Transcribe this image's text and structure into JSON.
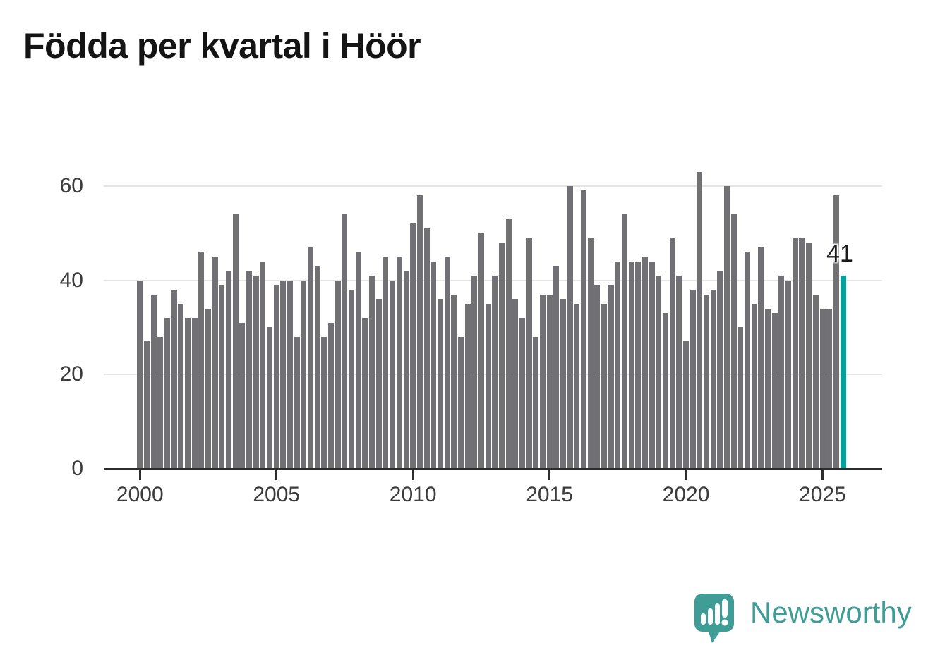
{
  "title": "Födda per kvartal i Höör",
  "value_label": "41",
  "logo": {
    "text": "Newsworthy"
  },
  "colors": {
    "bar": "#707075",
    "highlight": "#00a29c",
    "grid": "#e4e4e4",
    "axis": "#2d2d2d",
    "tick_text": "#3c3c3c",
    "title_text": "#141414",
    "logo_teal": "#3f9d96"
  },
  "chart_data": {
    "type": "bar",
    "title": "Födda per kvartal i Höör",
    "x_start": "2000-Q1",
    "x_end": "2025-Q4",
    "frequency": "quarterly",
    "values": [
      40,
      27,
      37,
      28,
      32,
      38,
      35,
      32,
      32,
      46,
      34,
      45,
      39,
      42,
      54,
      31,
      42,
      41,
      44,
      30,
      39,
      40,
      40,
      28,
      40,
      47,
      43,
      28,
      31,
      40,
      54,
      38,
      46,
      32,
      41,
      36,
      45,
      40,
      45,
      42,
      52,
      58,
      51,
      44,
      36,
      45,
      37,
      28,
      35,
      41,
      50,
      35,
      41,
      48,
      53,
      36,
      32,
      49,
      28,
      37,
      37,
      43,
      36,
      60,
      35,
      59,
      49,
      39,
      35,
      39,
      44,
      54,
      44,
      44,
      45,
      44,
      41,
      33,
      49,
      41,
      27,
      38,
      63,
      37,
      38,
      42,
      60,
      54,
      30,
      46,
      35,
      47,
      34,
      33,
      41,
      40,
      49,
      49,
      48,
      37,
      34,
      34,
      58,
      41
    ],
    "highlight_index": 103,
    "highlight_value": 41,
    "y_ticks": [
      0,
      20,
      40,
      60
    ],
    "x_ticks": [
      "2000",
      "2005",
      "2010",
      "2015",
      "2020",
      "2025"
    ],
    "ylim": [
      0,
      66
    ],
    "grid": "horizontal",
    "legend": "none"
  }
}
